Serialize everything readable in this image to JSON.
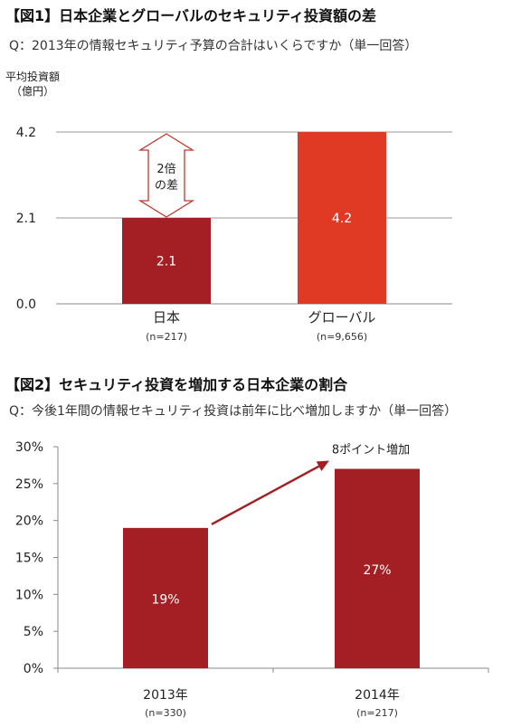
{
  "figure1": {
    "title": "【図1】日本企業とグローバルのセキュリティ投資額の差",
    "question": "Q：2013年の情報セキュリティ予算の合計はいくらですか（単一回答）",
    "chart_data": {
      "type": "bar",
      "ylabel": [
        "平均投資額",
        "（億円）"
      ],
      "ylim": [
        0,
        4.2
      ],
      "yticks": [
        "4.2",
        "2.1",
        "0.0"
      ],
      "ytick_values": [
        4.2,
        2.1,
        0.0
      ],
      "grid": true,
      "categories": [
        "日本",
        "グローバル"
      ],
      "sublabels": [
        "(n=217)",
        "(n=9,656)"
      ],
      "values": [
        2.1,
        4.2
      ],
      "value_labels": [
        "2.1",
        "4.2"
      ],
      "colors": [
        "#a31f24",
        "#e03a24"
      ],
      "annotation": [
        "2倍",
        "の差"
      ]
    }
  },
  "figure2": {
    "title": "【図2】セキュリティ投資を増加する日本企業の割合",
    "question": "Q：今後1年間の情報セキュリティ投資は前年に比べ増加しますか（単一回答）",
    "chart_data": {
      "type": "bar",
      "ylim": [
        0,
        30
      ],
      "yticks": [
        "30%",
        "25%",
        "20%",
        "15%",
        "10%",
        "5%",
        "0%"
      ],
      "ytick_values": [
        30,
        25,
        20,
        15,
        10,
        5,
        0
      ],
      "grid": false,
      "categories": [
        "2013年",
        "2014年"
      ],
      "sublabels": [
        "(n=330)",
        "(n=217)"
      ],
      "values": [
        19,
        27
      ],
      "value_labels": [
        "19%",
        "27%"
      ],
      "colors": [
        "#a31f24",
        "#a31f24"
      ],
      "annotation": "8ポイント増加"
    }
  }
}
